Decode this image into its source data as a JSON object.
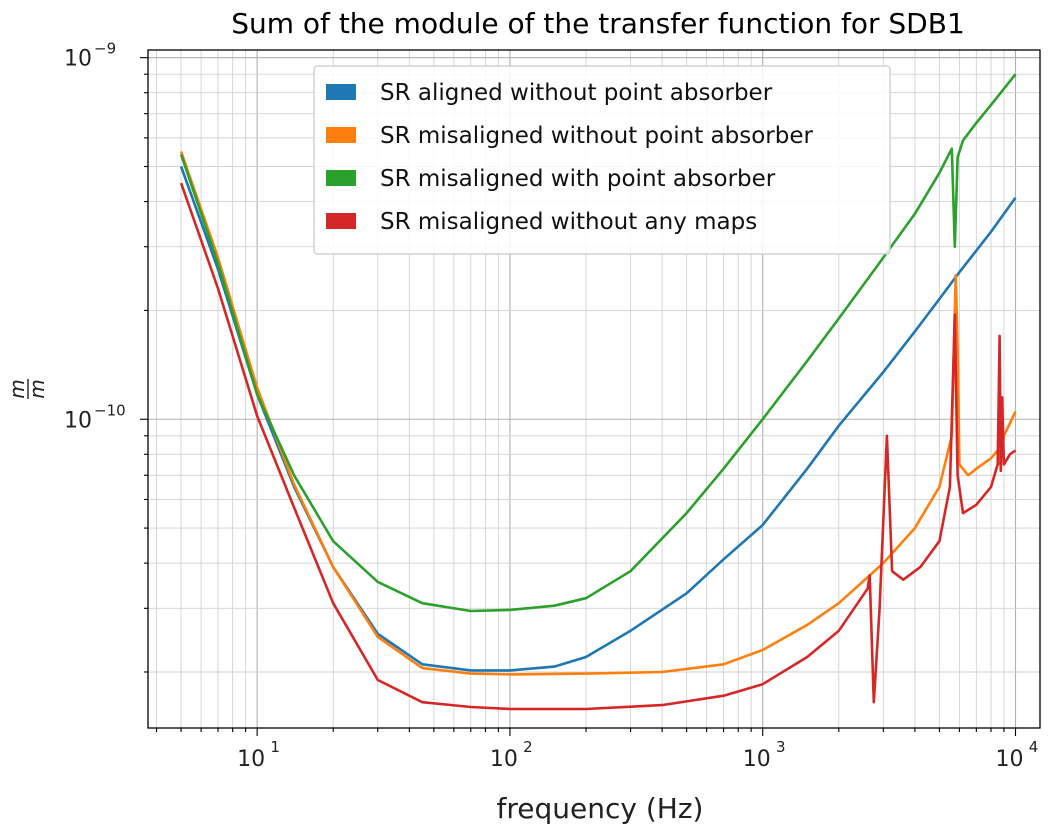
{
  "chart_data": {
    "type": "line",
    "title": "Sum of the module of the transfer function for SDB1",
    "xlabel": "frequency (Hz)",
    "ylabel": "m/m",
    "xscale": "log",
    "yscale": "log",
    "xlim": [
      3.7,
      12500
    ],
    "ylim": [
      1.4e-11,
      1.05e-09
    ],
    "x_ticks": [
      {
        "base": "10",
        "exp": "1",
        "value": 10
      },
      {
        "base": "10",
        "exp": "2",
        "value": 100
      },
      {
        "base": "10",
        "exp": "3",
        "value": 1000
      },
      {
        "base": "10",
        "exp": "4",
        "value": 10000
      }
    ],
    "y_ticks": [
      {
        "base": "10",
        "exp": "−10",
        "value": 1e-10
      },
      {
        "base": "10",
        "exp": "−9",
        "value": 1e-09
      }
    ],
    "grid": true,
    "legend_position": "top-center",
    "series": [
      {
        "name": "SR aligned without point absorber",
        "color": "#1f77b4",
        "points": [
          [
            5,
            5e-10
          ],
          [
            7,
            2.6e-10
          ],
          [
            10,
            1.17e-10
          ],
          [
            14,
            6.5e-11
          ],
          [
            20,
            3.9e-11
          ],
          [
            30,
            2.55e-11
          ],
          [
            45,
            2.1e-11
          ],
          [
            70,
            2.02e-11
          ],
          [
            100,
            2.02e-11
          ],
          [
            150,
            2.07e-11
          ],
          [
            200,
            2.2e-11
          ],
          [
            300,
            2.6e-11
          ],
          [
            500,
            3.3e-11
          ],
          [
            700,
            4.1e-11
          ],
          [
            1000,
            5.1e-11
          ],
          [
            1500,
            7.3e-11
          ],
          [
            2000,
            9.6e-11
          ],
          [
            3000,
            1.35e-10
          ],
          [
            4000,
            1.75e-10
          ],
          [
            5000,
            2.15e-10
          ],
          [
            6000,
            2.55e-10
          ],
          [
            8000,
            3.3e-10
          ],
          [
            10000,
            4.1e-10
          ]
        ]
      },
      {
        "name": "SR misaligned without point absorber",
        "color": "#ff7f0e",
        "points": [
          [
            5,
            5.5e-10
          ],
          [
            7,
            2.8e-10
          ],
          [
            10,
            1.22e-10
          ],
          [
            14,
            6.6e-11
          ],
          [
            20,
            3.9e-11
          ],
          [
            30,
            2.5e-11
          ],
          [
            45,
            2.05e-11
          ],
          [
            70,
            1.98e-11
          ],
          [
            100,
            1.97e-11
          ],
          [
            200,
            1.98e-11
          ],
          [
            400,
            2e-11
          ],
          [
            700,
            2.1e-11
          ],
          [
            1000,
            2.3e-11
          ],
          [
            1500,
            2.7e-11
          ],
          [
            2000,
            3.1e-11
          ],
          [
            3000,
            4e-11
          ],
          [
            4000,
            5e-11
          ],
          [
            5000,
            6.5e-11
          ],
          [
            5600,
            9e-11
          ],
          [
            5800,
            2.5e-10
          ],
          [
            5900,
            1.6e-10
          ],
          [
            6000,
            7.5e-11
          ],
          [
            6500,
            7e-11
          ],
          [
            7000,
            7.3e-11
          ],
          [
            8000,
            7.8e-11
          ],
          [
            8500,
            8.2e-11
          ],
          [
            8700,
            7.5e-11
          ],
          [
            9000,
            9e-11
          ],
          [
            10000,
            1.05e-10
          ]
        ]
      },
      {
        "name": "SR misaligned with point absorber",
        "color": "#2ca02c",
        "points": [
          [
            5,
            5.4e-10
          ],
          [
            7,
            2.7e-10
          ],
          [
            10,
            1.17e-10
          ],
          [
            14,
            7e-11
          ],
          [
            20,
            4.6e-11
          ],
          [
            30,
            3.55e-11
          ],
          [
            45,
            3.1e-11
          ],
          [
            70,
            2.95e-11
          ],
          [
            100,
            2.97e-11
          ],
          [
            150,
            3.05e-11
          ],
          [
            200,
            3.2e-11
          ],
          [
            300,
            3.8e-11
          ],
          [
            500,
            5.5e-11
          ],
          [
            700,
            7.3e-11
          ],
          [
            1000,
            1e-10
          ],
          [
            1500,
            1.45e-10
          ],
          [
            2000,
            1.9e-10
          ],
          [
            3000,
            2.8e-10
          ],
          [
            4000,
            3.7e-10
          ],
          [
            5000,
            4.8e-10
          ],
          [
            5600,
            5.6e-10
          ],
          [
            5750,
            3e-10
          ],
          [
            5900,
            5.3e-10
          ],
          [
            6200,
            5.9e-10
          ],
          [
            7000,
            6.6e-10
          ],
          [
            8000,
            7.4e-10
          ],
          [
            9000,
            8.2e-10
          ],
          [
            10000,
            9e-10
          ]
        ]
      },
      {
        "name": "SR misaligned without any maps",
        "color": "#d62728",
        "points": [
          [
            5,
            4.5e-10
          ],
          [
            7,
            2.3e-10
          ],
          [
            10,
            1.02e-10
          ],
          [
            14,
            5.7e-11
          ],
          [
            20,
            3.1e-11
          ],
          [
            30,
            1.9e-11
          ],
          [
            45,
            1.65e-11
          ],
          [
            70,
            1.6e-11
          ],
          [
            100,
            1.58e-11
          ],
          [
            200,
            1.58e-11
          ],
          [
            400,
            1.62e-11
          ],
          [
            700,
            1.72e-11
          ],
          [
            1000,
            1.85e-11
          ],
          [
            1500,
            2.2e-11
          ],
          [
            2000,
            2.6e-11
          ],
          [
            2600,
            3.4e-11
          ],
          [
            2650,
            3.7e-11
          ],
          [
            2750,
            1.65e-11
          ],
          [
            2900,
            3e-11
          ],
          [
            3100,
            9e-11
          ],
          [
            3250,
            3.8e-11
          ],
          [
            3600,
            3.6e-11
          ],
          [
            4200,
            3.9e-11
          ],
          [
            5000,
            4.6e-11
          ],
          [
            5500,
            6.5e-11
          ],
          [
            5750,
            1.95e-10
          ],
          [
            5900,
            7e-11
          ],
          [
            6200,
            5.5e-11
          ],
          [
            7000,
            5.8e-11
          ],
          [
            8000,
            6.5e-11
          ],
          [
            8500,
            7.5e-11
          ],
          [
            8650,
            1.7e-10
          ],
          [
            8750,
            7.2e-11
          ],
          [
            8850,
            1.15e-10
          ],
          [
            9000,
            7.5e-11
          ],
          [
            9500,
            8e-11
          ],
          [
            10000,
            8.2e-11
          ]
        ]
      }
    ]
  }
}
